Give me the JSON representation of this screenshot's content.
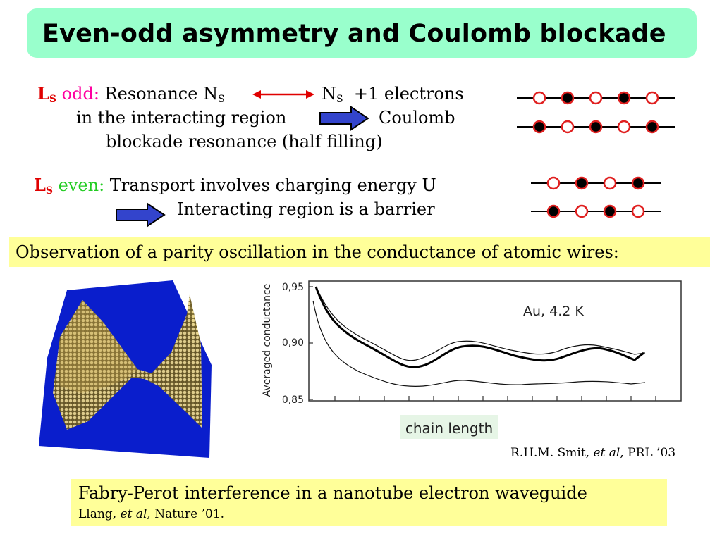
{
  "title": "Even-odd asymmetry and Coulomb blockade",
  "odd": {
    "label_L": "L",
    "label_sub": "S",
    "keyword": "odd:",
    "text1a": "Resonance N",
    "sub1": "S",
    "text1b": "N",
    "sub2": "S",
    "text1c": "+1 electrons",
    "line2a": "in the interacting region",
    "line2b": "Coulomb",
    "line3": "blockade resonance (half filling)"
  },
  "even": {
    "label_L": "L",
    "label_sub": "S",
    "keyword": "even:",
    "line1": "Transport involves charging energy U",
    "line2": "Interacting region is a barrier"
  },
  "observation": "Observation of a parity oscillation in the conductance of atomic wires:",
  "plot": {
    "ylabel": "Averaged conductance",
    "ticks": [
      "0,95",
      "0,90",
      "0,85"
    ],
    "annotation": "Au, 4.2 K",
    "xlabel": "chain length"
  },
  "citation": {
    "authors": "R.H.M. Smit,",
    "etal": "et al",
    "journal": ", PRL ’03"
  },
  "fabry": {
    "line1": "Fabry-Perot interference in a nanotube electron waveguide",
    "authors": "Llang,",
    "etal": "et al",
    "journal": ", Nature ’01."
  },
  "colors": {
    "title_bg": "#99ffcc",
    "highlight": "#ffff99",
    "accent_red": "#e00000",
    "odd_pink": "#ff00a0",
    "even_green": "#22cc22",
    "arrow_blue": "#3344cc",
    "sim_blue": "#0a1ecc",
    "sim_gold": "#c8a850"
  }
}
